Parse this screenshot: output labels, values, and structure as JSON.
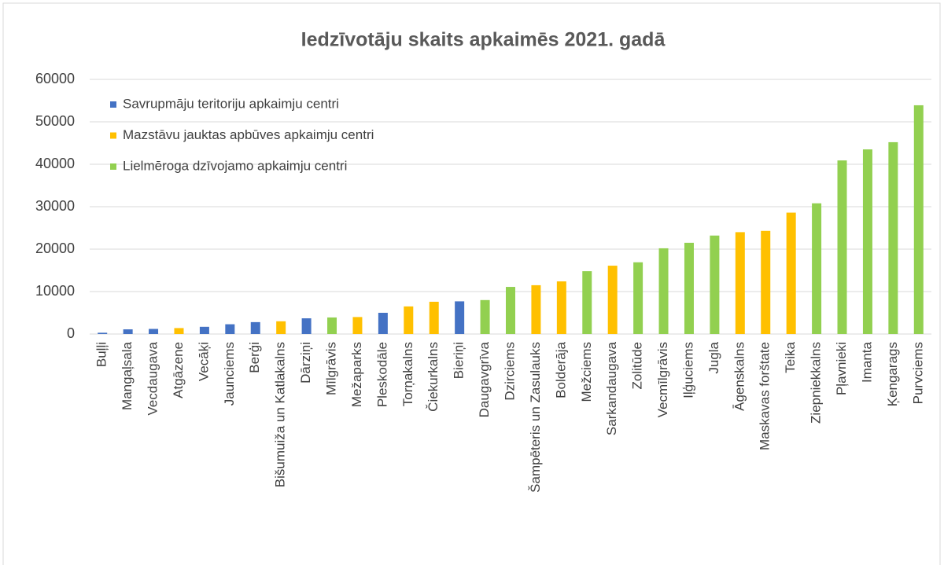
{
  "chart_data": {
    "type": "bar",
    "title": "Iedzīvotāju skaits apkaimēs 2021. gadā",
    "categories": [
      "Buļļi",
      "Mangaļsala",
      "Vecdaugava",
      "Atgāzene",
      "Vecāķi",
      "Jaunciems",
      "Berģi",
      "Bišumuiža un Katlakalns",
      "Dārziņi",
      "Mīlgrāvis",
      "Mežaparks",
      "Pleskodāle",
      "Torņakalns",
      "Čiekurkalns",
      "Bieriņi",
      "Daugavgrīva",
      "Dzirciems",
      "Šampēteris un Zasulauks",
      "Bolderāja",
      "Mežciems",
      "Sarkandaugava",
      "Zolitūde",
      "Vecmīlgrāvis",
      "Iļģuciems",
      "Jugla",
      "Āgenskalns",
      "Maskavas forštate",
      "Teika",
      "Ziepniekkalns",
      "Pļavnieki",
      "Imanta",
      "Ķengarags",
      "Purvciems"
    ],
    "series": [
      {
        "name": "Savrupmāju teritoriju apkaimju centri",
        "color": "#4472c4",
        "values": [
          300,
          1100,
          1200,
          null,
          1700,
          2300,
          2800,
          null,
          3700,
          null,
          null,
          5000,
          null,
          null,
          7700,
          null,
          null,
          null,
          null,
          null,
          null,
          null,
          null,
          null,
          null,
          null,
          null,
          null,
          null,
          null,
          null,
          null,
          null
        ]
      },
      {
        "name": "Mazstāvu jauktas apbūves apkaimju centri",
        "color": "#ffc000",
        "values": [
          null,
          null,
          null,
          1400,
          null,
          null,
          null,
          3000,
          null,
          null,
          4000,
          null,
          6500,
          7600,
          null,
          null,
          null,
          11500,
          12400,
          null,
          16100,
          null,
          null,
          null,
          null,
          24000,
          24300,
          28600,
          null,
          null,
          null,
          null,
          null
        ]
      },
      {
        "name": "Lielmēroga dzīvojamo apkaimju centri",
        "color": "#92d050",
        "values": [
          null,
          null,
          null,
          null,
          null,
          null,
          null,
          null,
          null,
          3900,
          null,
          null,
          null,
          null,
          null,
          8000,
          11100,
          null,
          null,
          14800,
          null,
          16900,
          20200,
          21500,
          23200,
          null,
          null,
          null,
          30800,
          40900,
          43500,
          45200,
          53900
        ]
      }
    ],
    "ylim": [
      0,
      60000
    ],
    "yticks": [
      0,
      10000,
      20000,
      30000,
      40000,
      50000,
      60000
    ],
    "grid": true,
    "legend": "top-left"
  }
}
